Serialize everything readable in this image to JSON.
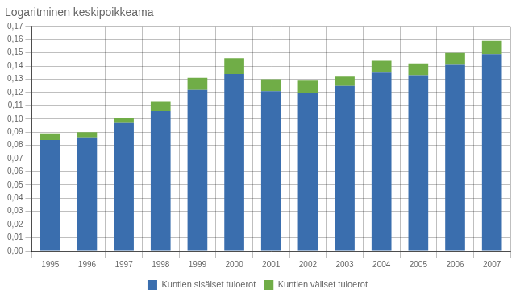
{
  "chart_data": {
    "type": "bar",
    "title": "Logaritminen keskipoikkeama",
    "categories": [
      "1995",
      "1996",
      "1997",
      "1998",
      "1999",
      "2000",
      "2001",
      "2002",
      "2003",
      "2004",
      "2005",
      "2006",
      "2007"
    ],
    "series": [
      {
        "name": "Kuntien sisäiset tuloerot",
        "color": "#3A6EAE",
        "values": [
          0.084,
          0.086,
          0.097,
          0.106,
          0.122,
          0.134,
          0.121,
          0.12,
          0.125,
          0.135,
          0.133,
          0.141,
          0.149
        ]
      },
      {
        "name": "Kuntien väliset tuloerot",
        "color": "#70AD47",
        "values": [
          0.005,
          0.004,
          0.004,
          0.007,
          0.009,
          0.012,
          0.009,
          0.009,
          0.007,
          0.009,
          0.009,
          0.009,
          0.01
        ]
      }
    ],
    "stacked": true,
    "ylim": [
      0.0,
      0.17
    ],
    "yticks": [
      {
        "value": 0.0,
        "label": "0,00"
      },
      {
        "value": 0.01,
        "label": "0,01"
      },
      {
        "value": 0.02,
        "label": "0,02"
      },
      {
        "value": 0.03,
        "label": "0,03"
      },
      {
        "value": 0.04,
        "label": "0,04"
      },
      {
        "value": 0.05,
        "label": "0,05"
      },
      {
        "value": 0.06,
        "label": "0,06"
      },
      {
        "value": 0.07,
        "label": "0,07"
      },
      {
        "value": 0.08,
        "label": "0,08"
      },
      {
        "value": 0.09,
        "label": "0,09"
      },
      {
        "value": 0.1,
        "label": "0,10"
      },
      {
        "value": 0.11,
        "label": "0,11"
      },
      {
        "value": 0.12,
        "label": "0,12"
      },
      {
        "value": 0.13,
        "label": "0,13"
      },
      {
        "value": 0.14,
        "label": "0,14"
      },
      {
        "value": 0.15,
        "label": "0,15"
      },
      {
        "value": 0.16,
        "label": "0,16"
      },
      {
        "value": 0.17,
        "label": "0,17"
      }
    ],
    "grid": true,
    "legend": "bottom"
  }
}
